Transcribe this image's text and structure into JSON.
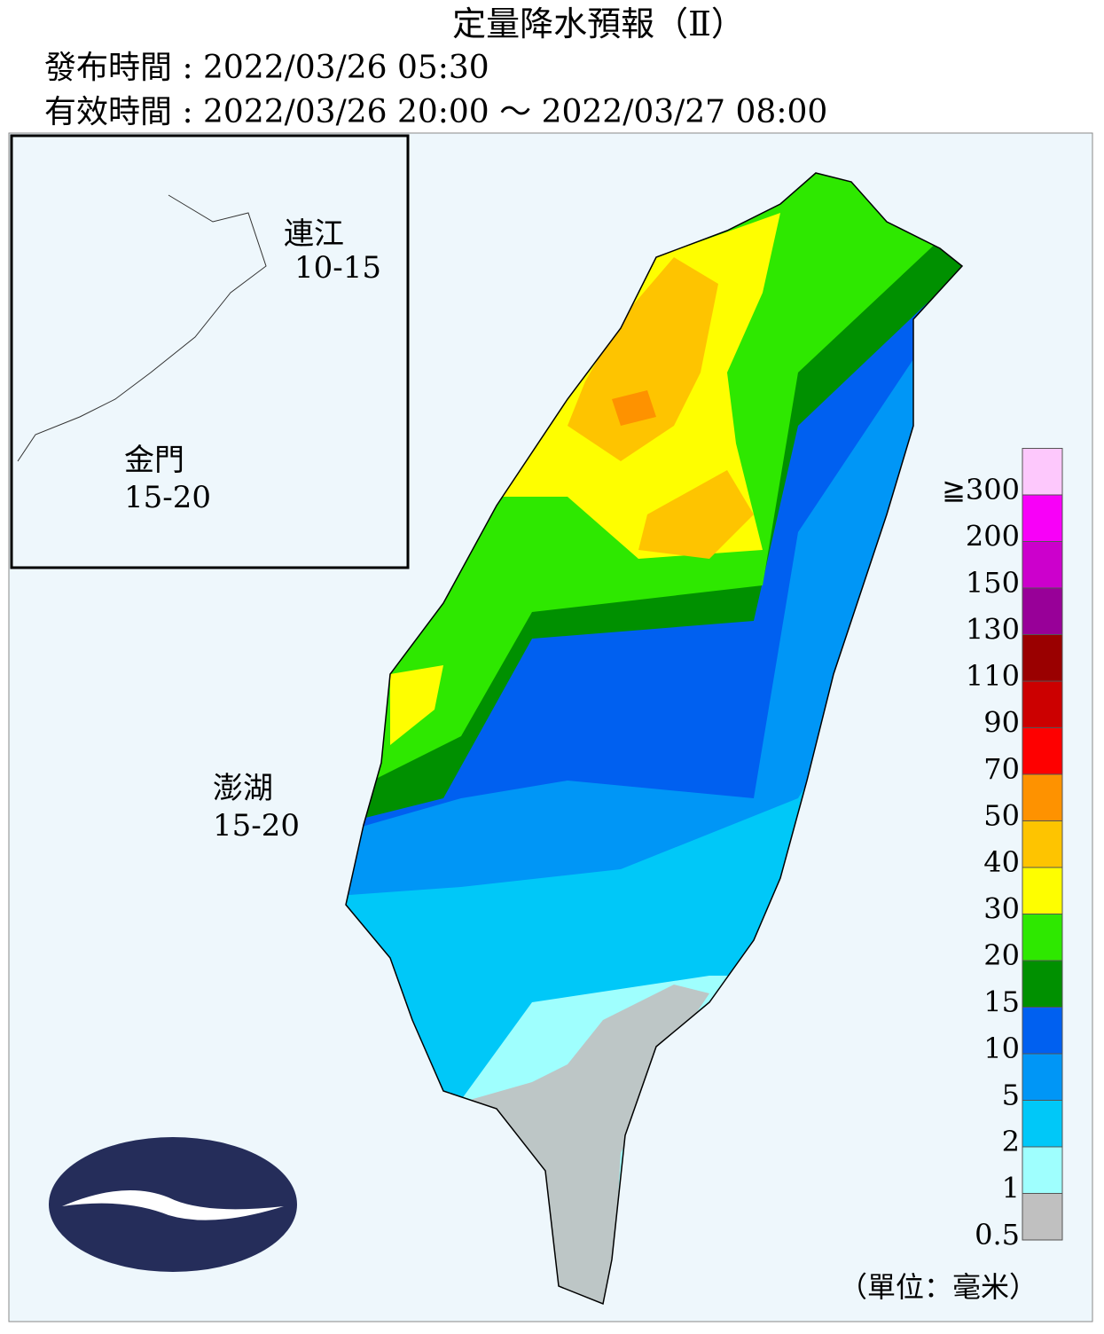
{
  "header": {
    "title": "定量降水預報（Ⅱ）",
    "issued": "發布時間 : 2022/03/26 05:30",
    "valid": "有效時間 : 2022/03/26 20:00 ～ 2022/03/27 08:00"
  },
  "islands": [
    {
      "name": "連江",
      "range": "10-15"
    },
    {
      "name": "金門",
      "range": "15-20"
    },
    {
      "name": "澎湖",
      "range": "15-20"
    }
  ],
  "legend": {
    "labels": [
      "0.5",
      "1",
      "2",
      "5",
      "10",
      "15",
      "20",
      "30",
      "40",
      "50",
      "70",
      "90",
      "110",
      "130",
      "150",
      "200",
      "≧300"
    ],
    "colors": [
      "#c0c0c0",
      "#9ffffe",
      "#00c8f8",
      "#0096f6",
      "#0060f0",
      "#009000",
      "#2ee800",
      "#fefe00",
      "#fec400",
      "#fe9200",
      "#fe0000",
      "#cc0000",
      "#9a0000",
      "#980098",
      "#cc00cc",
      "#f800f8",
      "#fdc8fc"
    ],
    "unit": "（單位：毫米）"
  }
}
